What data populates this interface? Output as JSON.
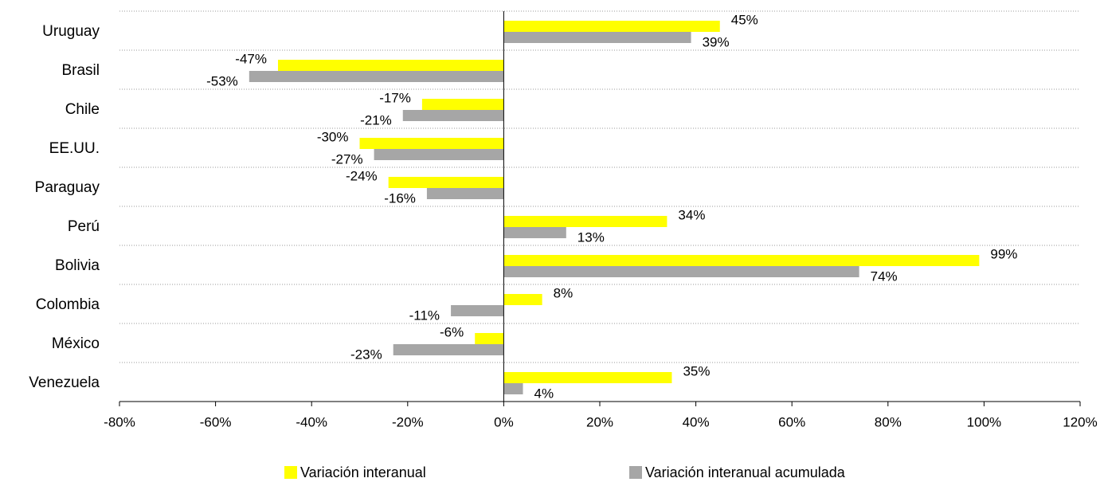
{
  "chart_data": {
    "type": "hbar",
    "categories": [
      "Uruguay",
      "Brasil",
      "Chile",
      "EE.UU.",
      "Paraguay",
      "Perú",
      "Bolivia",
      "Colombia",
      "México",
      "Venezuela"
    ],
    "series": [
      {
        "name": "Variación interanual",
        "color": "#ffff00",
        "values": [
          45,
          -47,
          -17,
          -30,
          -24,
          34,
          99,
          8,
          -6,
          35
        ],
        "value_labels": [
          "45%",
          "-47%",
          "-17%",
          "-30%",
          "-24%",
          "34%",
          "99%",
          "8%",
          "-6%",
          "35%"
        ]
      },
      {
        "name": "Variación interanual acumulada",
        "color": "#a6a6a6",
        "values": [
          39,
          -53,
          -21,
          -27,
          -16,
          13,
          74,
          -11,
          -23,
          4
        ],
        "value_labels": [
          "39%",
          "-53%",
          "-21%",
          "-27%",
          "-16%",
          "13%",
          "74%",
          "-11%",
          "-23%",
          "4%"
        ]
      }
    ],
    "xlim": [
      -80,
      120
    ],
    "xticks": [
      {
        "value": -80,
        "label": "-80%"
      },
      {
        "value": -60,
        "label": "-60%"
      },
      {
        "value": -40,
        "label": "-40%"
      },
      {
        "value": -20,
        "label": "-20%"
      },
      {
        "value": 0,
        "label": "0%"
      },
      {
        "value": 20,
        "label": "20%"
      },
      {
        "value": 40,
        "label": "40%"
      },
      {
        "value": 60,
        "label": "60%"
      },
      {
        "value": 80,
        "label": "80%"
      },
      {
        "value": 100,
        "label": "100%"
      },
      {
        "value": 120,
        "label": "120%"
      }
    ],
    "grid": true,
    "legend": "bottom"
  }
}
